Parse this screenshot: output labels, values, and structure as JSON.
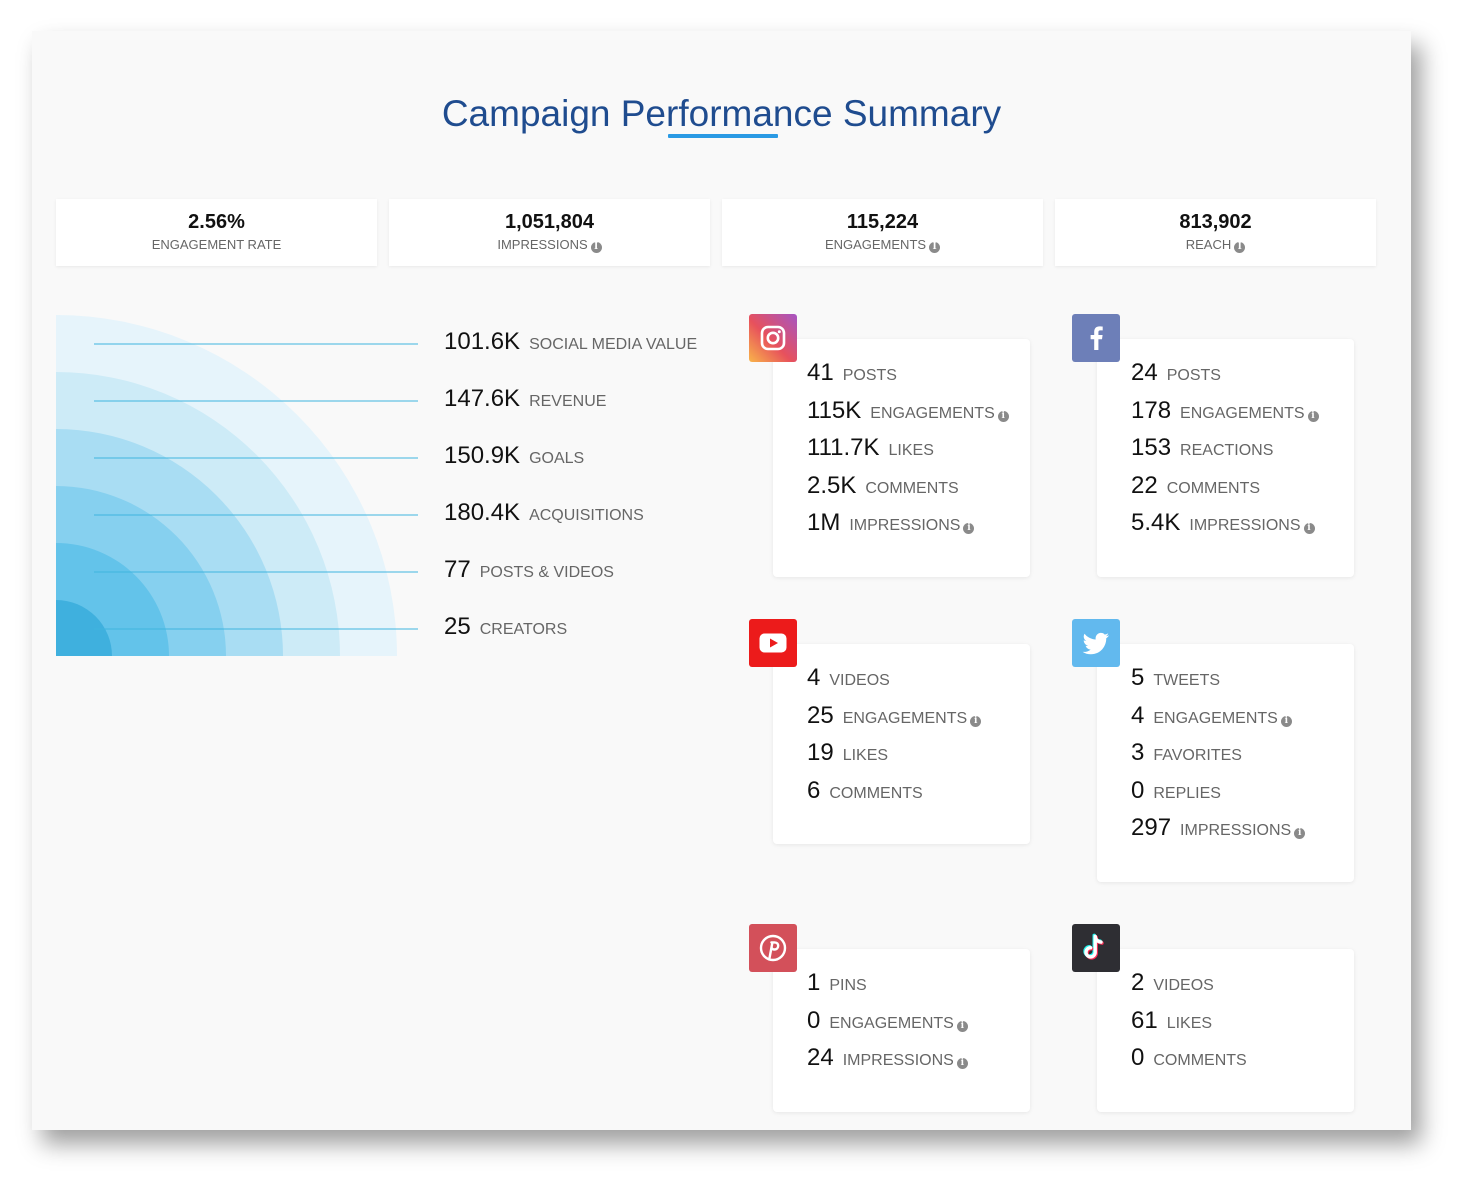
{
  "title": "Campaign Performance Summary",
  "kpis": [
    {
      "value": "2.56%",
      "label": "ENGAGEMENT RATE",
      "info": false
    },
    {
      "value": "1,051,804",
      "label": "IMPRESSIONS",
      "info": true
    },
    {
      "value": "115,224",
      "label": "ENGAGEMENTS",
      "info": true
    },
    {
      "value": "813,902",
      "label": "REACH",
      "info": true
    }
  ],
  "metrics": [
    {
      "value": "101.6K",
      "label": "SOCIAL MEDIA VALUE"
    },
    {
      "value": "147.6K",
      "label": "REVENUE"
    },
    {
      "value": "150.9K",
      "label": "GOALS"
    },
    {
      "value": "180.4K",
      "label": "ACQUISITIONS"
    },
    {
      "value": "77",
      "label": "POSTS & VIDEOS"
    },
    {
      "value": "25",
      "label": "CREATORS"
    }
  ],
  "platforms": {
    "instagram": {
      "icon": "instagram-icon",
      "rows": [
        {
          "value": "41",
          "label": "POSTS"
        },
        {
          "value": "115K",
          "label": "ENGAGEMENTS"
        },
        {
          "value": "111.7K",
          "label": "LIKES"
        },
        {
          "value": "2.5K",
          "label": "COMMENTS"
        },
        {
          "value": "1M",
          "label": "IMPRESSIONS"
        }
      ]
    },
    "facebook": {
      "icon": "facebook-icon",
      "rows": [
        {
          "value": "24",
          "label": "POSTS"
        },
        {
          "value": "178",
          "label": "ENGAGEMENTS"
        },
        {
          "value": "153",
          "label": "REACTIONS"
        },
        {
          "value": "22",
          "label": "COMMENTS"
        },
        {
          "value": "5.4K",
          "label": "IMPRESSIONS"
        }
      ]
    },
    "youtube": {
      "icon": "youtube-icon",
      "rows": [
        {
          "value": "4",
          "label": "VIDEOS"
        },
        {
          "value": "25",
          "label": "ENGAGEMENTS"
        },
        {
          "value": "19",
          "label": "LIKES"
        },
        {
          "value": "6",
          "label": "COMMENTS"
        }
      ]
    },
    "twitter": {
      "icon": "twitter-icon",
      "rows": [
        {
          "value": "5",
          "label": "TWEETS"
        },
        {
          "value": "4",
          "label": "ENGAGEMENTS"
        },
        {
          "value": "3",
          "label": "FAVORITES"
        },
        {
          "value": "0",
          "label": "REPLIES"
        },
        {
          "value": "297",
          "label": "IMPRESSIONS"
        }
      ]
    },
    "pinterest": {
      "icon": "pinterest-icon",
      "rows": [
        {
          "value": "1",
          "label": "PINS"
        },
        {
          "value": "0",
          "label": "ENGAGEMENTS"
        },
        {
          "value": "24",
          "label": "IMPRESSIONS"
        }
      ]
    },
    "tiktok": {
      "icon": "tiktok-icon",
      "rows": [
        {
          "value": "2",
          "label": "VIDEOS"
        },
        {
          "value": "61",
          "label": "LIKES"
        },
        {
          "value": "0",
          "label": "COMMENTS"
        }
      ]
    }
  },
  "colors": {
    "title": "#1f4c8f",
    "accent": "#2a9ae4",
    "arc_ring": [
      "#e6f4fb",
      "#cdebf7",
      "#a9ddf3",
      "#86d0ef",
      "#63c3ea",
      "#3fb0de"
    ]
  }
}
